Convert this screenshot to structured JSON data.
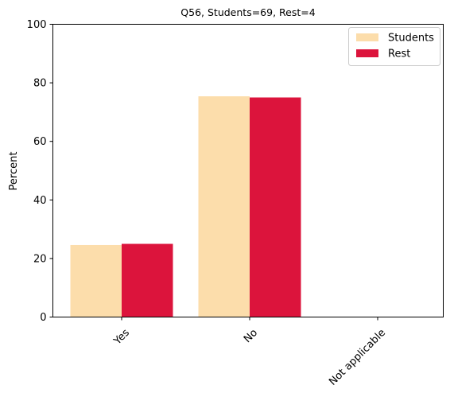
{
  "chart_data": {
    "type": "bar",
    "title": "Q56, Students=69, Rest=4",
    "xlabel": "",
    "ylabel": "Percent",
    "categories": [
      "Yes",
      "No",
      "Not applicable"
    ],
    "series": [
      {
        "name": "Students",
        "values": [
          24.6,
          75.4,
          0
        ],
        "color": "#FCDDAB"
      },
      {
        "name": "Rest",
        "values": [
          25.0,
          75.0,
          0
        ],
        "color": "#DC143C"
      }
    ],
    "ylim": [
      0,
      100
    ],
    "yticks": [
      "0",
      "20",
      "40",
      "60",
      "80",
      "100"
    ],
    "grid": false,
    "legend_position": "top-right",
    "xtick_rotation": "45 degrees"
  }
}
